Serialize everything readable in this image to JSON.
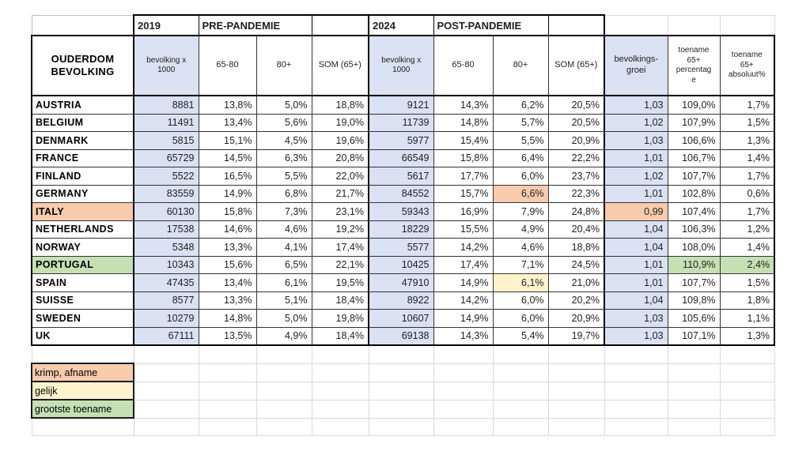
{
  "header": {
    "corner": "",
    "year_2019": "2019",
    "pre_pandemic": "PRE-PANDEMIE",
    "year_2024": "2024",
    "post_pandemic": "POST-PANDEMIE",
    "row_title": "OUDERDOM\nBEVOLKING",
    "col_population": "bevolking x\n1000",
    "col_65_80": "65-80",
    "col_80plus": "80+",
    "col_som": "SOM (65+)",
    "col_growth": "bevolkings-\ngroei",
    "col_increase_pct": "toename\n65+\npercentag\ne",
    "col_increase_abs": "toename\n65+\nabsoluut%"
  },
  "rows": [
    {
      "country": "AUSTRIA",
      "values": [
        "8881",
        "13,8%",
        "5,0%",
        "18,8%",
        "9121",
        "14,3%",
        "6,2%",
        "20,5%",
        "1,03",
        "109,0%",
        "1,7%"
      ],
      "highlights": {}
    },
    {
      "country": "BELGIUM",
      "values": [
        "11491",
        "13,4%",
        "5,6%",
        "19,0%",
        "11739",
        "14,8%",
        "5,7%",
        "20,5%",
        "1,02",
        "107,9%",
        "1,5%"
      ],
      "highlights": {}
    },
    {
      "country": "DENMARK",
      "values": [
        "5815",
        "15,1%",
        "4,5%",
        "19,6%",
        "5977",
        "15,4%",
        "5,5%",
        "20,9%",
        "1,03",
        "106,6%",
        "1,3%"
      ],
      "highlights": {}
    },
    {
      "country": "FRANCE",
      "values": [
        "65729",
        "14,5%",
        "6,3%",
        "20,8%",
        "66549",
        "15,8%",
        "6,4%",
        "22,2%",
        "1,01",
        "106,7%",
        "1,4%"
      ],
      "highlights": {}
    },
    {
      "country": "FINLAND",
      "values": [
        "5522",
        "16,5%",
        "5,5%",
        "22,0%",
        "5617",
        "17,7%",
        "6,0%",
        "23,7%",
        "1,02",
        "107,7%",
        "1,7%"
      ],
      "highlights": {}
    },
    {
      "country": "GERMANY",
      "values": [
        "83559",
        "14,9%",
        "6,8%",
        "21,7%",
        "84552",
        "15,7%",
        "6,6%",
        "22,3%",
        "1,01",
        "102,8%",
        "0,6%"
      ],
      "highlights": {
        "v6": "orange"
      }
    },
    {
      "country": "ITALY",
      "values": [
        "60130",
        "15,8%",
        "7,3%",
        "23,1%",
        "59343",
        "16,9%",
        "7,9%",
        "24,8%",
        "0,99",
        "107,4%",
        "1,7%"
      ],
      "highlights": {
        "country": "orange",
        "v8": "orange"
      }
    },
    {
      "country": "NETHERLANDS",
      "values": [
        "17538",
        "14,6%",
        "4,6%",
        "19,2%",
        "18229",
        "15,5%",
        "4,9%",
        "20,4%",
        "1,04",
        "106,3%",
        "1,2%"
      ],
      "highlights": {}
    },
    {
      "country": "NORWAY",
      "values": [
        "5348",
        "13,3%",
        "4,1%",
        "17,4%",
        "5577",
        "14,2%",
        "4,6%",
        "18,8%",
        "1,04",
        "108,0%",
        "1,4%"
      ],
      "highlights": {}
    },
    {
      "country": "PORTUGAL",
      "values": [
        "10343",
        "15,6%",
        "6,5%",
        "22,1%",
        "10425",
        "17,4%",
        "7,1%",
        "24,5%",
        "1,01",
        "110,9%",
        "2,4%"
      ],
      "highlights": {
        "country": "green",
        "v9": "green",
        "v10": "green"
      }
    },
    {
      "country": "SPAIN",
      "values": [
        "47435",
        "13,4%",
        "6,1%",
        "19,5%",
        "47910",
        "14,9%",
        "6,1%",
        "21,0%",
        "1,01",
        "107,7%",
        "1,5%"
      ],
      "highlights": {
        "v6": "yellow"
      }
    },
    {
      "country": "SUISSE",
      "values": [
        "8577",
        "13,3%",
        "5,1%",
        "18,4%",
        "8922",
        "14,2%",
        "6,0%",
        "20,2%",
        "1,04",
        "109,8%",
        "1,8%"
      ],
      "highlights": {}
    },
    {
      "country": "SWEDEN",
      "values": [
        "10279",
        "14,8%",
        "5,0%",
        "19,8%",
        "10607",
        "14,9%",
        "6,0%",
        "20,9%",
        "1,03",
        "105,6%",
        "1,1%"
      ],
      "highlights": {}
    },
    {
      "country": "UK",
      "values": [
        "67111",
        "13,5%",
        "4,9%",
        "18,4%",
        "69138",
        "14,3%",
        "5,4%",
        "19,7%",
        "1,03",
        "107,1%",
        "1,3%"
      ],
      "highlights": {}
    }
  ],
  "legend": {
    "items": [
      {
        "label": "krimp, afname",
        "color_key": "orange"
      },
      {
        "label": "gelijk",
        "color_key": "yellow"
      },
      {
        "label": "grootste toename",
        "color_key": "green"
      }
    ]
  },
  "colors": {
    "lavender": "#D9E1F2",
    "orange": "#F8CBAD",
    "yellow": "#FFF2CC",
    "green": "#C6E0B4"
  }
}
